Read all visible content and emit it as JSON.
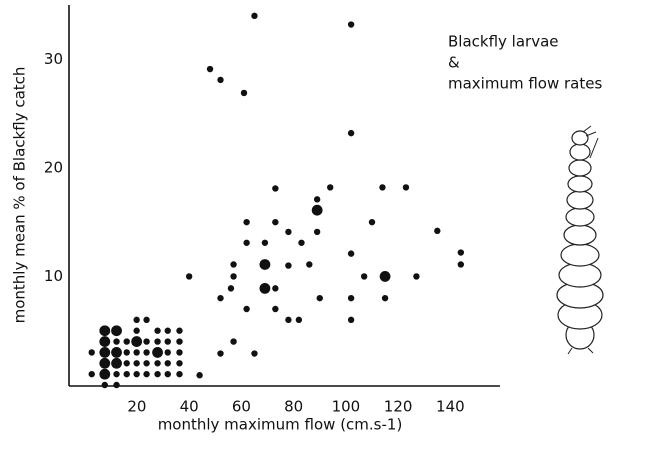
{
  "chart_data": {
    "type": "scatter",
    "title_lines": [
      "Blackfly larvae",
      "&",
      "maximum flow rates"
    ],
    "x_label": "monthly maximum flow (cm.s-1)",
    "y_label": "monthly mean % of Blackfly catch",
    "xlim": [
      -6,
      159
    ],
    "ylim": [
      0,
      35
    ],
    "xticks": [
      20,
      40,
      60,
      80,
      100,
      120,
      140
    ],
    "yticks": [
      10,
      20,
      30
    ],
    "color": "#111111",
    "x": [
      65,
      102,
      48,
      52,
      61,
      102,
      73,
      94,
      114,
      123,
      89,
      89,
      62,
      73,
      110,
      135,
      78,
      89,
      62,
      69,
      83,
      144,
      102,
      57,
      78,
      86,
      69,
      144,
      40,
      57,
      107,
      115,
      127,
      56,
      69,
      73,
      52,
      90,
      102,
      115,
      62,
      73,
      78,
      82,
      102,
      57,
      52,
      65,
      44,
      19.9,
      23.7,
      7.7,
      12.2,
      19.9,
      27.9,
      31.8,
      36.3,
      7.7,
      12.2,
      16.1,
      19.9,
      23.7,
      27.9,
      31.8,
      36.3,
      2.7,
      7.7,
      12.2,
      16.1,
      19.9,
      23.7,
      27.9,
      31.8,
      36.3,
      7.7,
      12.2,
      16.1,
      19.9,
      23.7,
      27.9,
      31.8,
      36.3,
      2.7,
      7.7,
      12.2,
      16.1,
      19.9,
      23.7,
      27.9,
      31.8,
      36.3,
      7.7,
      12.2
    ],
    "y": [
      34,
      33.2,
      29.1,
      28.1,
      26.9,
      23.2,
      18.1,
      18.2,
      18.2,
      18.2,
      17.1,
      16.1,
      15,
      15,
      15,
      14.2,
      14.1,
      14.1,
      13.1,
      13.1,
      13.1,
      12.2,
      12.1,
      11.1,
      11,
      11.1,
      11.1,
      11.1,
      10,
      10,
      10,
      10,
      10,
      8.9,
      8.9,
      8.9,
      8,
      8,
      8,
      8,
      7,
      7,
      6,
      6,
      6,
      4,
      2.9,
      2.9,
      0.9,
      6,
      6,
      5,
      5,
      5,
      5,
      5,
      5,
      4,
      4,
      4,
      4,
      4,
      4,
      4,
      4,
      3,
      3,
      3,
      3,
      3,
      3,
      3,
      3,
      3,
      2,
      2,
      2,
      2,
      2,
      2,
      2,
      2,
      1,
      1,
      1,
      1,
      1,
      1,
      1,
      1,
      1,
      0,
      0
    ],
    "size": [
      1,
      1,
      1,
      1,
      1,
      1,
      1,
      1,
      1,
      1,
      1,
      2,
      1,
      1,
      1,
      1,
      1,
      1,
      1,
      1,
      1,
      1,
      1,
      1,
      1,
      1,
      2,
      1,
      1,
      1,
      1,
      2,
      1,
      1,
      2,
      1,
      1,
      1,
      1,
      1,
      1,
      1,
      1,
      1,
      1,
      1,
      1,
      1,
      1,
      1,
      1,
      2,
      2,
      1,
      1,
      1,
      1,
      2,
      1,
      1,
      2,
      1,
      1,
      1,
      1,
      1,
      2,
      2,
      1,
      1,
      1,
      2,
      1,
      1,
      2,
      2,
      1,
      1,
      1,
      1,
      1,
      1,
      1,
      2,
      1,
      1,
      1,
      1,
      1,
      1,
      1,
      1,
      1
    ]
  }
}
